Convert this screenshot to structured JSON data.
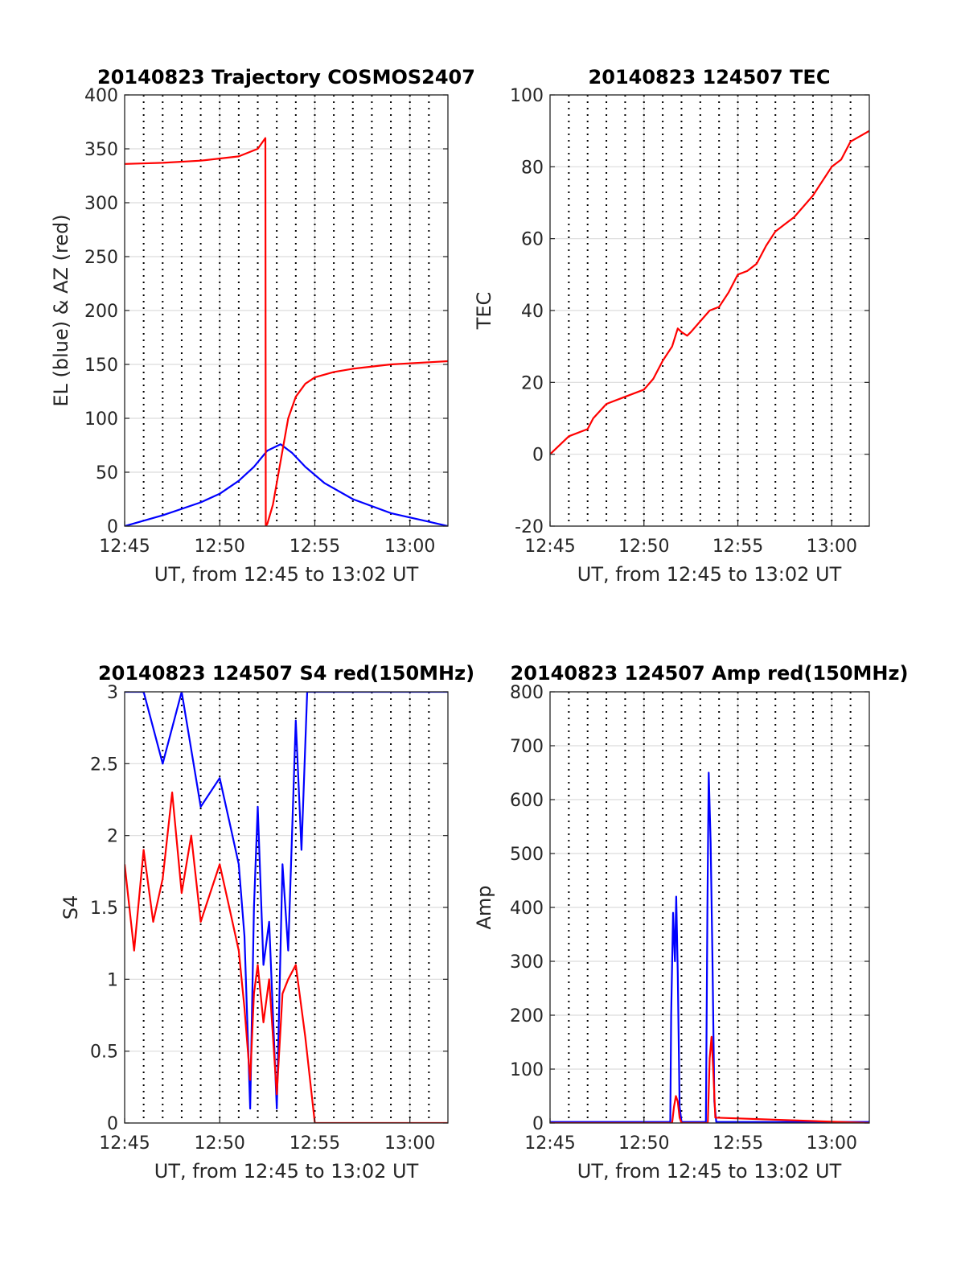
{
  "colors": {
    "red": "#ff0000",
    "blue": "#0000ff"
  },
  "chart_data": [
    {
      "type": "line",
      "title": "20140823 Trajectory COSMOS2407",
      "xlabel": "UT, from 12:45 to 13:02 UT",
      "ylabel": "EL (blue) & AZ (red)",
      "xlim": [
        0,
        17
      ],
      "ylim": [
        0,
        400
      ],
      "x_tick_labels": [
        "12:45",
        "12:50",
        "12:55",
        "13:00"
      ],
      "x_tick_values": [
        0,
        5,
        10,
        15
      ],
      "y_ticks": [
        0,
        50,
        100,
        150,
        200,
        250,
        300,
        350,
        400
      ],
      "grid": true,
      "series": [
        {
          "color": "blue",
          "x": [
            0,
            2,
            4,
            5,
            6,
            6.8,
            7.5,
            8.2,
            8.8,
            9.5,
            10.5,
            12,
            14,
            16,
            17
          ],
          "y": [
            0,
            10,
            22,
            30,
            42,
            55,
            70,
            76,
            68,
            55,
            40,
            25,
            12,
            4,
            0
          ]
        },
        {
          "color": "red",
          "x": [
            0,
            2,
            4,
            6,
            7,
            7.4,
            7.42,
            7.5,
            7.8,
            8.2,
            8.6,
            9.0,
            9.5,
            10,
            11,
            12,
            14,
            16,
            17
          ],
          "y": [
            336,
            337,
            339,
            343,
            350,
            360,
            0,
            2,
            20,
            60,
            100,
            120,
            132,
            138,
            143,
            146,
            150,
            152,
            153
          ]
        }
      ]
    },
    {
      "type": "line",
      "title": "20140823 124507 TEC",
      "xlabel": "UT, from 12:45 to 13:02 UT",
      "ylabel": "TEC",
      "xlim": [
        0,
        17
      ],
      "ylim": [
        -20,
        100
      ],
      "x_tick_labels": [
        "12:45",
        "12:50",
        "12:55",
        "13:00"
      ],
      "x_tick_values": [
        0,
        5,
        10,
        15
      ],
      "y_ticks": [
        -20,
        0,
        20,
        40,
        60,
        80,
        100
      ],
      "grid": true,
      "series": [
        {
          "color": "red",
          "x": [
            0,
            1,
            2,
            2.3,
            3,
            4,
            5,
            5.5,
            6,
            6.5,
            6.8,
            7,
            7.3,
            7.5,
            8,
            8.5,
            9,
            9.5,
            10,
            10.5,
            11,
            11.5,
            12,
            12.5,
            13,
            14,
            15,
            15.5,
            16,
            17
          ],
          "y": [
            0,
            5,
            7,
            10,
            14,
            16,
            18,
            21,
            26,
            30,
            35,
            34,
            33,
            34,
            37,
            40,
            41,
            45,
            50,
            51,
            53,
            58,
            62,
            64,
            66,
            72,
            80,
            82,
            87,
            90
          ]
        }
      ]
    },
    {
      "type": "line",
      "title": "20140823 124507 S4 red(150MHz)",
      "xlabel": "UT, from 12:45 to 13:02 UT",
      "ylabel": "S4",
      "xlim": [
        0,
        17
      ],
      "ylim": [
        0,
        3
      ],
      "x_tick_labels": [
        "12:45",
        "12:50",
        "12:55",
        "13:00"
      ],
      "x_tick_values": [
        0,
        5,
        10,
        15
      ],
      "y_ticks": [
        0,
        0.5,
        1,
        1.5,
        2,
        2.5,
        3
      ],
      "y_tick_labels": [
        "0",
        "0.5",
        "1",
        "1.5",
        "2",
        "2.5",
        "3"
      ],
      "grid": true,
      "series": [
        {
          "color": "blue",
          "x": [
            0,
            1,
            2,
            3,
            4,
            5,
            5.5,
            6,
            6.3,
            6.6,
            6.8,
            7,
            7.3,
            7.6,
            8,
            8.3,
            8.6,
            9,
            9.3,
            9.6,
            10,
            11,
            12,
            13,
            14,
            15,
            16,
            17
          ],
          "y": [
            3,
            3,
            2.5,
            3,
            2.2,
            2.4,
            2.1,
            1.8,
            1.3,
            0.1,
            1.5,
            2.2,
            1.1,
            1.4,
            0.1,
            1.8,
            1.2,
            2.8,
            1.9,
            3,
            3,
            3,
            3,
            3,
            3,
            3,
            3,
            3
          ]
        },
        {
          "color": "red",
          "x": [
            0,
            0.5,
            1,
            1.5,
            2,
            2.5,
            3,
            3.5,
            4,
            4.5,
            5,
            5.5,
            6,
            6.3,
            6.6,
            6.8,
            7,
            7.3,
            7.6,
            8,
            8.3,
            8.6,
            9,
            9.5,
            10,
            11,
            12,
            13,
            14,
            15,
            16,
            17
          ],
          "y": [
            1.8,
            1.2,
            1.9,
            1.4,
            1.7,
            2.3,
            1.6,
            2.0,
            1.4,
            1.6,
            1.8,
            1.5,
            1.2,
            0.8,
            0.3,
            0.9,
            1.1,
            0.7,
            1.0,
            0.2,
            0.9,
            1.0,
            1.1,
            0.6,
            0,
            0,
            0,
            0,
            0,
            0,
            0,
            0
          ]
        }
      ]
    },
    {
      "type": "line",
      "title": "20140823 124507 Amp red(150MHz)",
      "xlabel": "UT, from 12:45 to 13:02 UT",
      "ylabel": "Amp",
      "xlim": [
        0,
        17
      ],
      "ylim": [
        0,
        800
      ],
      "x_tick_labels": [
        "12:45",
        "12:50",
        "12:55",
        "13:00"
      ],
      "x_tick_values": [
        0,
        5,
        10,
        15
      ],
      "y_ticks": [
        0,
        100,
        200,
        300,
        400,
        500,
        600,
        700,
        800
      ],
      "grid": true,
      "series": [
        {
          "color": "blue",
          "x": [
            0,
            6.4,
            6.45,
            6.55,
            6.65,
            6.72,
            6.8,
            6.9,
            7.0,
            8.3,
            8.38,
            8.45,
            8.55,
            8.65,
            8.75,
            8.85,
            17
          ],
          "y": [
            2,
            2,
            200,
            390,
            300,
            420,
            280,
            30,
            2,
            2,
            400,
            650,
            520,
            300,
            40,
            2,
            2
          ]
        },
        {
          "color": "red",
          "x": [
            0,
            6.5,
            6.6,
            6.7,
            6.8,
            6.9,
            7.0,
            8.4,
            8.5,
            8.6,
            8.7,
            8.8,
            17
          ],
          "y": [
            0,
            0,
            30,
            50,
            40,
            10,
            0,
            0,
            120,
            160,
            90,
            10,
            0
          ]
        }
      ]
    }
  ]
}
